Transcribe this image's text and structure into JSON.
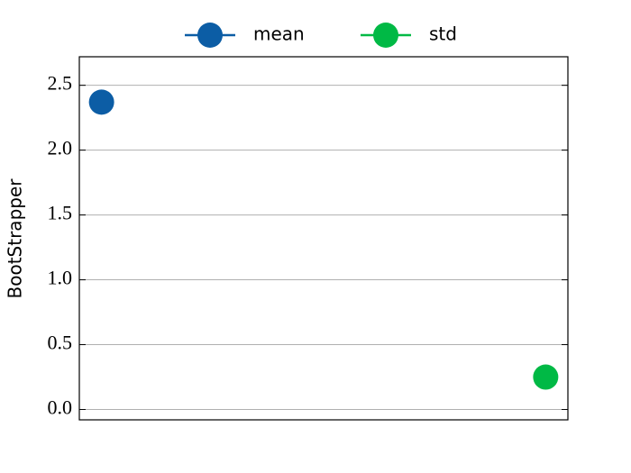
{
  "chart_data": {
    "type": "scatter",
    "y_label": "BootStrapper",
    "x": [
      0,
      1
    ],
    "xlim": [
      -0.05,
      1.05
    ],
    "series": [
      {
        "name": "mean",
        "color": "#0C5DA5",
        "values": [
          2.37,
          null
        ]
      },
      {
        "name": "std",
        "color": "#00B945",
        "values": [
          null,
          0.25
        ]
      }
    ],
    "ylim": [
      -0.08,
      2.72
    ],
    "yticks": [
      {
        "value": 0,
        "label": "0.0"
      },
      0.5,
      {
        "value": 1,
        "label": "1.0"
      },
      1.5,
      {
        "value": 2,
        "label": "2.0"
      },
      2.5
    ],
    "grid": true,
    "legend": "upper center outside"
  }
}
